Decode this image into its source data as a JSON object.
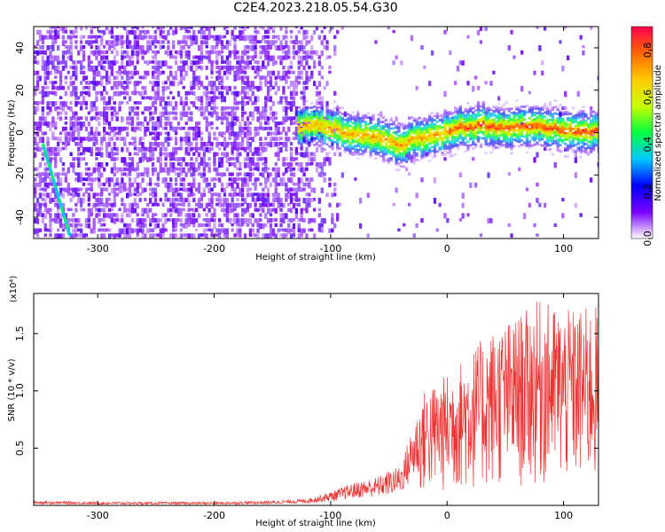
{
  "title": "C2E4.2023.218.05.54.G30",
  "chart_data": [
    {
      "type": "heatmap",
      "xlabel": "Height of straight line (km)",
      "ylabel": "Frequency (Hz)",
      "xlim": [
        -355,
        130
      ],
      "ylim": [
        -50,
        50
      ],
      "x_ticks": [
        -300,
        -200,
        -100,
        0,
        100
      ],
      "y_ticks": [
        -40,
        -20,
        0,
        20,
        40
      ],
      "colorbar": {
        "label": "Normalized spectral amplitude",
        "range": [
          0,
          0.9
        ],
        "ticks": [
          0.0,
          0.2,
          0.4,
          0.6,
          0.8
        ],
        "colors": [
          "#ffffff",
          "#7a00ff",
          "#0000ff",
          "#00c8ff",
          "#00ff40",
          "#c8ff00",
          "#ffcc00",
          "#ff6600",
          "#ff0050"
        ]
      },
      "noise_region_x": [
        -355,
        -130
      ],
      "signal_track": [
        {
          "x": -130,
          "y": 2
        },
        {
          "x": -110,
          "y": 3
        },
        {
          "x": -90,
          "y": 0
        },
        {
          "x": -70,
          "y": -2
        },
        {
          "x": -50,
          "y": -4
        },
        {
          "x": -40,
          "y": -7
        },
        {
          "x": -30,
          "y": -3
        },
        {
          "x": -10,
          "y": -2
        },
        {
          "x": 0,
          "y": 0
        },
        {
          "x": 10,
          "y": 2
        },
        {
          "x": 30,
          "y": 3
        },
        {
          "x": 50,
          "y": 2
        },
        {
          "x": 70,
          "y": 3
        },
        {
          "x": 90,
          "y": 2
        },
        {
          "x": 110,
          "y": 0
        },
        {
          "x": 130,
          "y": 0
        }
      ],
      "streak": [
        {
          "x": -348,
          "y": -5
        },
        {
          "x": -325,
          "y": -48
        }
      ]
    },
    {
      "type": "line",
      "xlabel": "Height of straight line (km)",
      "ylabel": "SNR (10 * v/v)",
      "y_multiplier": "(x10⁴)",
      "xlim": [
        -355,
        130
      ],
      "ylim": [
        0,
        1.85
      ],
      "x_ticks": [
        -300,
        -200,
        -100,
        0,
        100
      ],
      "y_ticks": [
        0.5,
        1.0,
        1.5
      ],
      "y_tick_labels": [
        "0.5",
        "1.0",
        "1.5"
      ],
      "color": "#ee3333",
      "envelope": [
        {
          "x": -355,
          "y": 0.04
        },
        {
          "x": -300,
          "y": 0.03
        },
        {
          "x": -200,
          "y": 0.03
        },
        {
          "x": -150,
          "y": 0.04
        },
        {
          "x": -120,
          "y": 0.06
        },
        {
          "x": -100,
          "y": 0.12
        },
        {
          "x": -80,
          "y": 0.2
        },
        {
          "x": -60,
          "y": 0.25
        },
        {
          "x": -40,
          "y": 0.35
        },
        {
          "x": -25,
          "y": 0.85
        },
        {
          "x": -20,
          "y": 1.0
        },
        {
          "x": 0,
          "y": 1.15
        },
        {
          "x": 20,
          "y": 1.35
        },
        {
          "x": 40,
          "y": 1.55
        },
        {
          "x": 60,
          "y": 1.65
        },
        {
          "x": 80,
          "y": 1.8
        },
        {
          "x": 100,
          "y": 1.7
        },
        {
          "x": 130,
          "y": 1.75
        }
      ]
    }
  ]
}
